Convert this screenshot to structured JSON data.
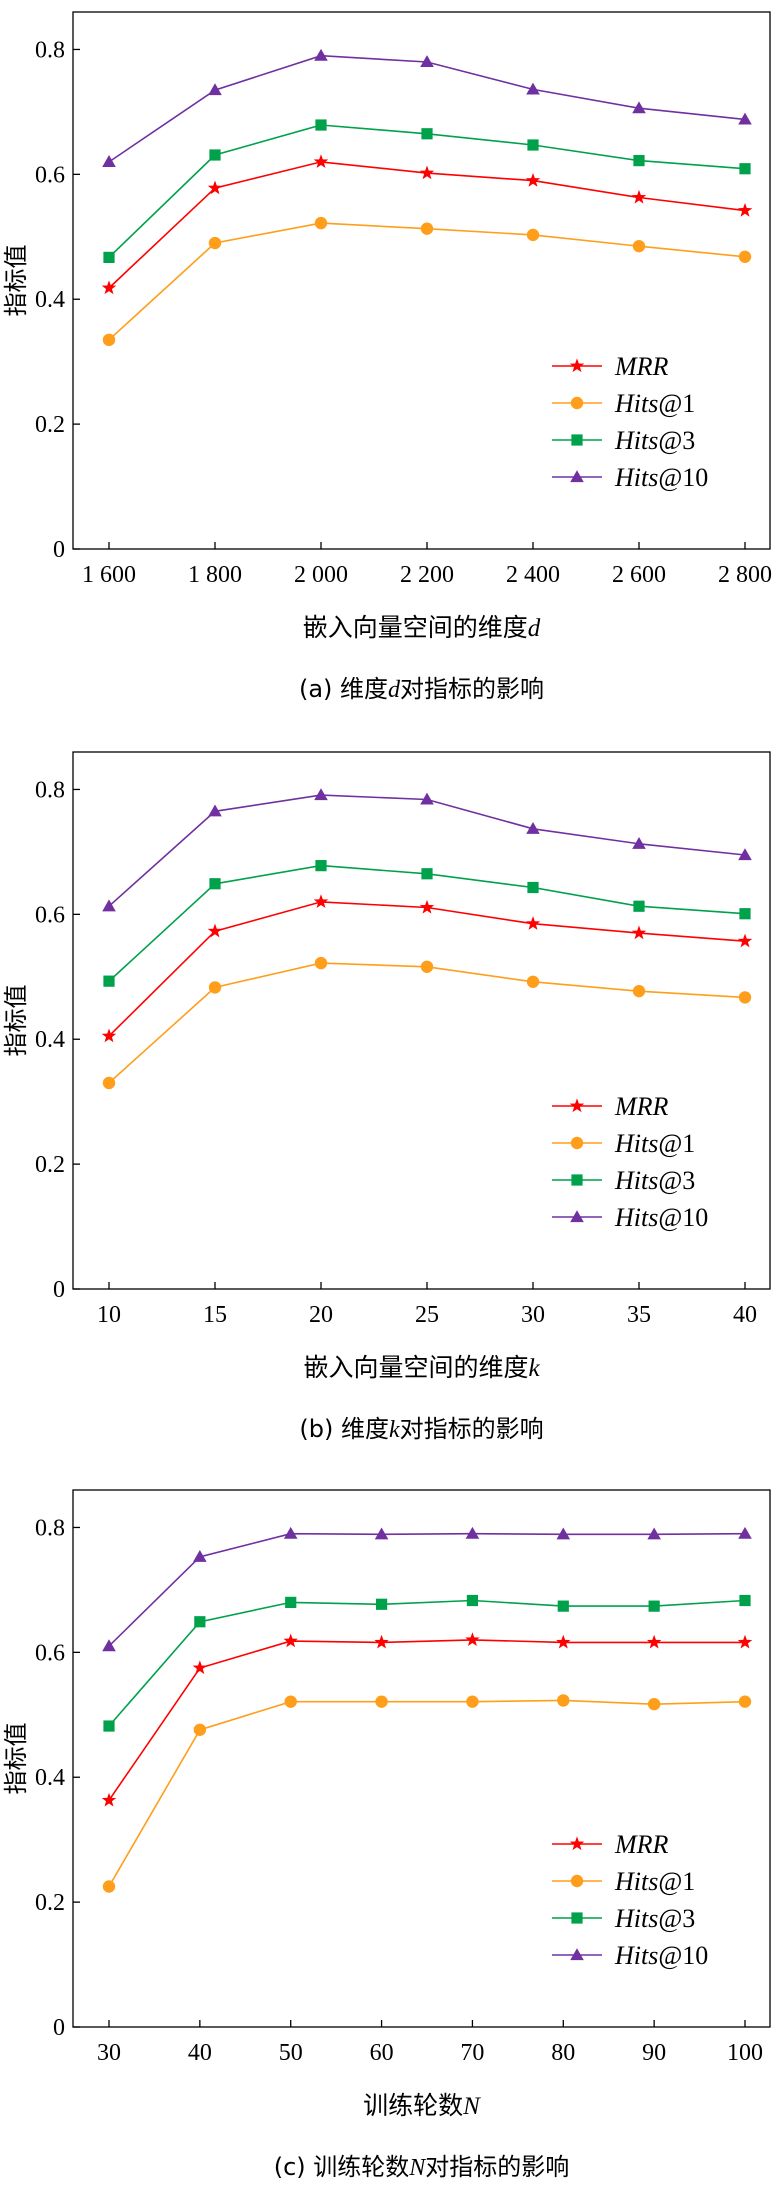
{
  "series_styles": [
    {
      "name_key": "MRR",
      "color": "#ff0000",
      "marker": "star"
    },
    {
      "name_key": "Hits@1",
      "color": "#ff9e1b",
      "marker": "circle"
    },
    {
      "name_key": "Hits@3",
      "color": "#00a14b",
      "marker": "square"
    },
    {
      "name_key": "Hits@10",
      "color": "#7030a0",
      "marker": "triangle"
    }
  ],
  "chart_data": [
    {
      "type": "line",
      "title": "(a)  维度d对指标的影响",
      "caption": {
        "prefix": "(a)  维度",
        "var": "d",
        "suffix": "对指标的影响"
      },
      "xlabel": {
        "text": "嵌入向量空间的维度",
        "var": "d"
      },
      "ylabel": "指标值",
      "x": [
        1600,
        1800,
        2000,
        2200,
        2400,
        2600,
        2800
      ],
      "x_tick_labels": [
        "1 600",
        "1 800",
        "2 000",
        "2 200",
        "2 400",
        "2 600",
        "2 800"
      ],
      "y_ticks": [
        "0",
        "0.2",
        "0.4",
        "0.6",
        "0.8"
      ],
      "ylim": [
        0,
        0.86
      ],
      "legend_position": "lower-right",
      "series": [
        {
          "name": "MRR",
          "label": {
            "ital": "MRR",
            "rest": ""
          },
          "values": [
            0.418,
            0.578,
            0.62,
            0.602,
            0.59,
            0.563,
            0.542
          ]
        },
        {
          "name": "Hits@1",
          "label": {
            "ital": "Hits",
            "rest": "@1"
          },
          "values": [
            0.335,
            0.49,
            0.522,
            0.513,
            0.503,
            0.485,
            0.468
          ]
        },
        {
          "name": "Hits@3",
          "label": {
            "ital": "Hits",
            "rest": "@3"
          },
          "values": [
            0.467,
            0.631,
            0.679,
            0.665,
            0.647,
            0.622,
            0.609
          ]
        },
        {
          "name": "Hits@10",
          "label": {
            "ital": "Hits",
            "rest": "@10"
          },
          "values": [
            0.62,
            0.735,
            0.79,
            0.78,
            0.736,
            0.706,
            0.688
          ]
        }
      ]
    },
    {
      "type": "line",
      "title": "(b)  维度k对指标的影响",
      "caption": {
        "prefix": "(b)  维度",
        "var": "k",
        "suffix": "对指标的影响"
      },
      "xlabel": {
        "text": "嵌入向量空间的维度",
        "var": "k"
      },
      "ylabel": "指标值",
      "x": [
        10,
        15,
        20,
        25,
        30,
        35,
        40
      ],
      "x_tick_labels": [
        "10",
        "15",
        "20",
        "25",
        "30",
        "35",
        "40"
      ],
      "y_ticks": [
        "0",
        "0.2",
        "0.4",
        "0.6",
        "0.8"
      ],
      "ylim": [
        0,
        0.86
      ],
      "legend_position": "lower-right",
      "series": [
        {
          "name": "MRR",
          "label": {
            "ital": "MRR",
            "rest": ""
          },
          "values": [
            0.405,
            0.573,
            0.62,
            0.611,
            0.585,
            0.57,
            0.557
          ]
        },
        {
          "name": "Hits@1",
          "label": {
            "ital": "Hits",
            "rest": "@1"
          },
          "values": [
            0.33,
            0.483,
            0.522,
            0.516,
            0.492,
            0.477,
            0.467
          ]
        },
        {
          "name": "Hits@3",
          "label": {
            "ital": "Hits",
            "rest": "@3"
          },
          "values": [
            0.493,
            0.649,
            0.678,
            0.665,
            0.643,
            0.613,
            0.601
          ]
        },
        {
          "name": "Hits@10",
          "label": {
            "ital": "Hits",
            "rest": "@10"
          },
          "values": [
            0.613,
            0.765,
            0.791,
            0.784,
            0.737,
            0.713,
            0.695
          ]
        }
      ]
    },
    {
      "type": "line",
      "title": "(c)  训练轮数N对指标的影响",
      "caption": {
        "prefix": "(c)  训练轮数",
        "var": "N",
        "suffix": "对指标的影响"
      },
      "xlabel": {
        "text": "训练轮数",
        "var": "N"
      },
      "ylabel": "指标值",
      "x": [
        30,
        40,
        50,
        60,
        70,
        80,
        90,
        100
      ],
      "x_tick_labels": [
        "30",
        "40",
        "50",
        "60",
        "70",
        "80",
        "90",
        "100"
      ],
      "y_ticks": [
        "0",
        "0.2",
        "0.4",
        "0.6",
        "0.8"
      ],
      "ylim": [
        0,
        0.86
      ],
      "legend_position": "lower-right",
      "series": [
        {
          "name": "MRR",
          "label": {
            "ital": "MRR",
            "rest": ""
          },
          "values": [
            0.363,
            0.575,
            0.618,
            0.616,
            0.62,
            0.616,
            0.616,
            0.616
          ]
        },
        {
          "name": "Hits@1",
          "label": {
            "ital": "Hits",
            "rest": "@1"
          },
          "values": [
            0.225,
            0.476,
            0.521,
            0.521,
            0.521,
            0.523,
            0.517,
            0.521
          ]
        },
        {
          "name": "Hits@3",
          "label": {
            "ital": "Hits",
            "rest": "@3"
          },
          "values": [
            0.482,
            0.649,
            0.68,
            0.677,
            0.683,
            0.674,
            0.674,
            0.683
          ]
        },
        {
          "name": "Hits@10",
          "label": {
            "ital": "Hits",
            "rest": "@10"
          },
          "values": [
            0.61,
            0.753,
            0.79,
            0.789,
            0.79,
            0.789,
            0.789,
            0.79
          ]
        }
      ]
    }
  ]
}
